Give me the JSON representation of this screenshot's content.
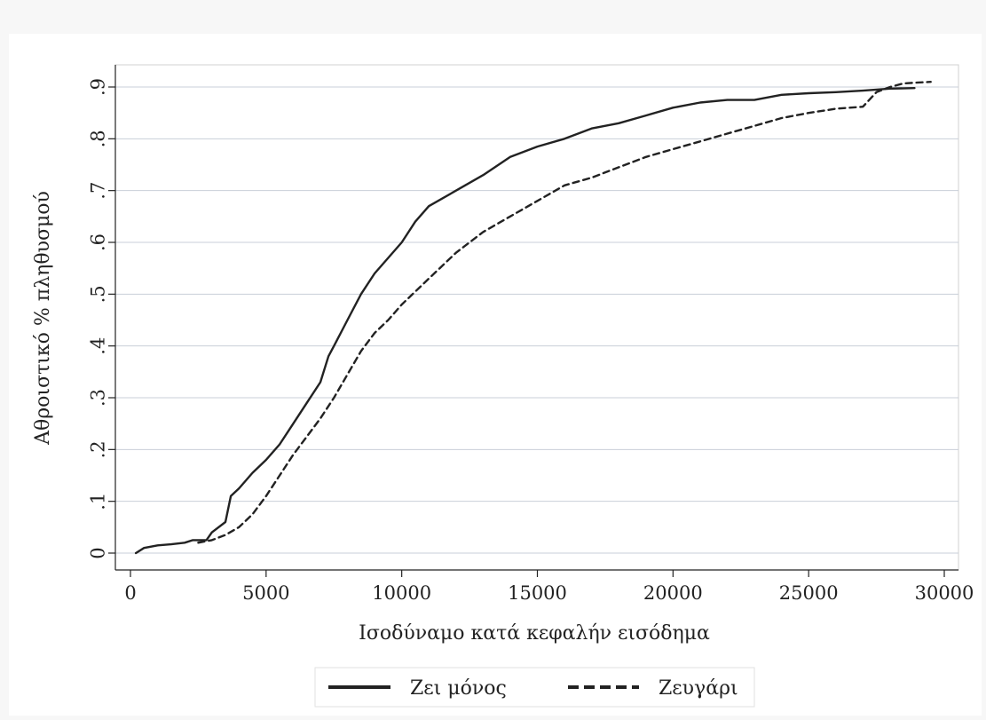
{
  "chart_data": {
    "type": "line",
    "xlabel": "Ισοδύναμο κατά κεφαλήν εισόδημα",
    "ylabel": "Αθροιστικό % πληθυσμού",
    "xlim": [
      0,
      30000
    ],
    "ylim": [
      0,
      0.9
    ],
    "x_ticks": [
      0,
      5000,
      10000,
      15000,
      20000,
      25000,
      30000
    ],
    "x_tick_labels": [
      "0",
      "5000",
      "10000",
      "15000",
      "20000",
      "25000",
      "30000"
    ],
    "y_ticks": [
      0,
      0.1,
      0.2,
      0.3,
      0.4,
      0.5,
      0.6,
      0.7,
      0.8,
      0.9
    ],
    "y_tick_labels": [
      "0",
      ".1",
      ".2",
      ".3",
      ".4",
      ".5",
      ".6",
      ".7",
      ".8",
      ".9"
    ],
    "grid": "horizontal",
    "legend_position": "bottom",
    "series": [
      {
        "name": "Ζει μόνος",
        "style": "solid",
        "color": "#222222",
        "points": [
          [
            200,
            0.0
          ],
          [
            500,
            0.01
          ],
          [
            1000,
            0.015
          ],
          [
            1500,
            0.017
          ],
          [
            2000,
            0.02
          ],
          [
            2300,
            0.025
          ],
          [
            2800,
            0.025
          ],
          [
            3000,
            0.04
          ],
          [
            3500,
            0.06
          ],
          [
            3700,
            0.11
          ],
          [
            4000,
            0.125
          ],
          [
            4500,
            0.155
          ],
          [
            5000,
            0.18
          ],
          [
            5500,
            0.21
          ],
          [
            6000,
            0.25
          ],
          [
            6500,
            0.29
          ],
          [
            7000,
            0.33
          ],
          [
            7300,
            0.38
          ],
          [
            7500,
            0.4
          ],
          [
            8000,
            0.45
          ],
          [
            8500,
            0.5
          ],
          [
            9000,
            0.54
          ],
          [
            9500,
            0.57
          ],
          [
            10000,
            0.6
          ],
          [
            10500,
            0.64
          ],
          [
            11000,
            0.67
          ],
          [
            12000,
            0.7
          ],
          [
            13000,
            0.73
          ],
          [
            14000,
            0.765
          ],
          [
            15000,
            0.785
          ],
          [
            16000,
            0.8
          ],
          [
            17000,
            0.82
          ],
          [
            18000,
            0.83
          ],
          [
            19000,
            0.845
          ],
          [
            20000,
            0.86
          ],
          [
            21000,
            0.87
          ],
          [
            22000,
            0.875
          ],
          [
            23000,
            0.875
          ],
          [
            24000,
            0.885
          ],
          [
            25000,
            0.888
          ],
          [
            26000,
            0.89
          ],
          [
            27000,
            0.893
          ],
          [
            28000,
            0.897
          ],
          [
            28900,
            0.898
          ]
        ]
      },
      {
        "name": "Ζευγάρι",
        "style": "dashed",
        "color": "#222222",
        "points": [
          [
            2500,
            0.02
          ],
          [
            3000,
            0.025
          ],
          [
            3500,
            0.035
          ],
          [
            4000,
            0.05
          ],
          [
            4500,
            0.075
          ],
          [
            5000,
            0.11
          ],
          [
            5500,
            0.15
          ],
          [
            6000,
            0.19
          ],
          [
            6500,
            0.225
          ],
          [
            7000,
            0.26
          ],
          [
            7500,
            0.3
          ],
          [
            8000,
            0.345
          ],
          [
            8500,
            0.39
          ],
          [
            9000,
            0.425
          ],
          [
            9500,
            0.45
          ],
          [
            10000,
            0.48
          ],
          [
            11000,
            0.53
          ],
          [
            12000,
            0.58
          ],
          [
            13000,
            0.62
          ],
          [
            14000,
            0.65
          ],
          [
            15000,
            0.68
          ],
          [
            16000,
            0.71
          ],
          [
            17000,
            0.725
          ],
          [
            18000,
            0.745
          ],
          [
            19000,
            0.765
          ],
          [
            20000,
            0.78
          ],
          [
            21000,
            0.795
          ],
          [
            22000,
            0.81
          ],
          [
            23000,
            0.825
          ],
          [
            24000,
            0.84
          ],
          [
            25000,
            0.85
          ],
          [
            26000,
            0.858
          ],
          [
            27000,
            0.862
          ],
          [
            27500,
            0.89
          ],
          [
            28000,
            0.9
          ],
          [
            28500,
            0.907
          ],
          [
            29500,
            0.91
          ]
        ]
      }
    ]
  }
}
